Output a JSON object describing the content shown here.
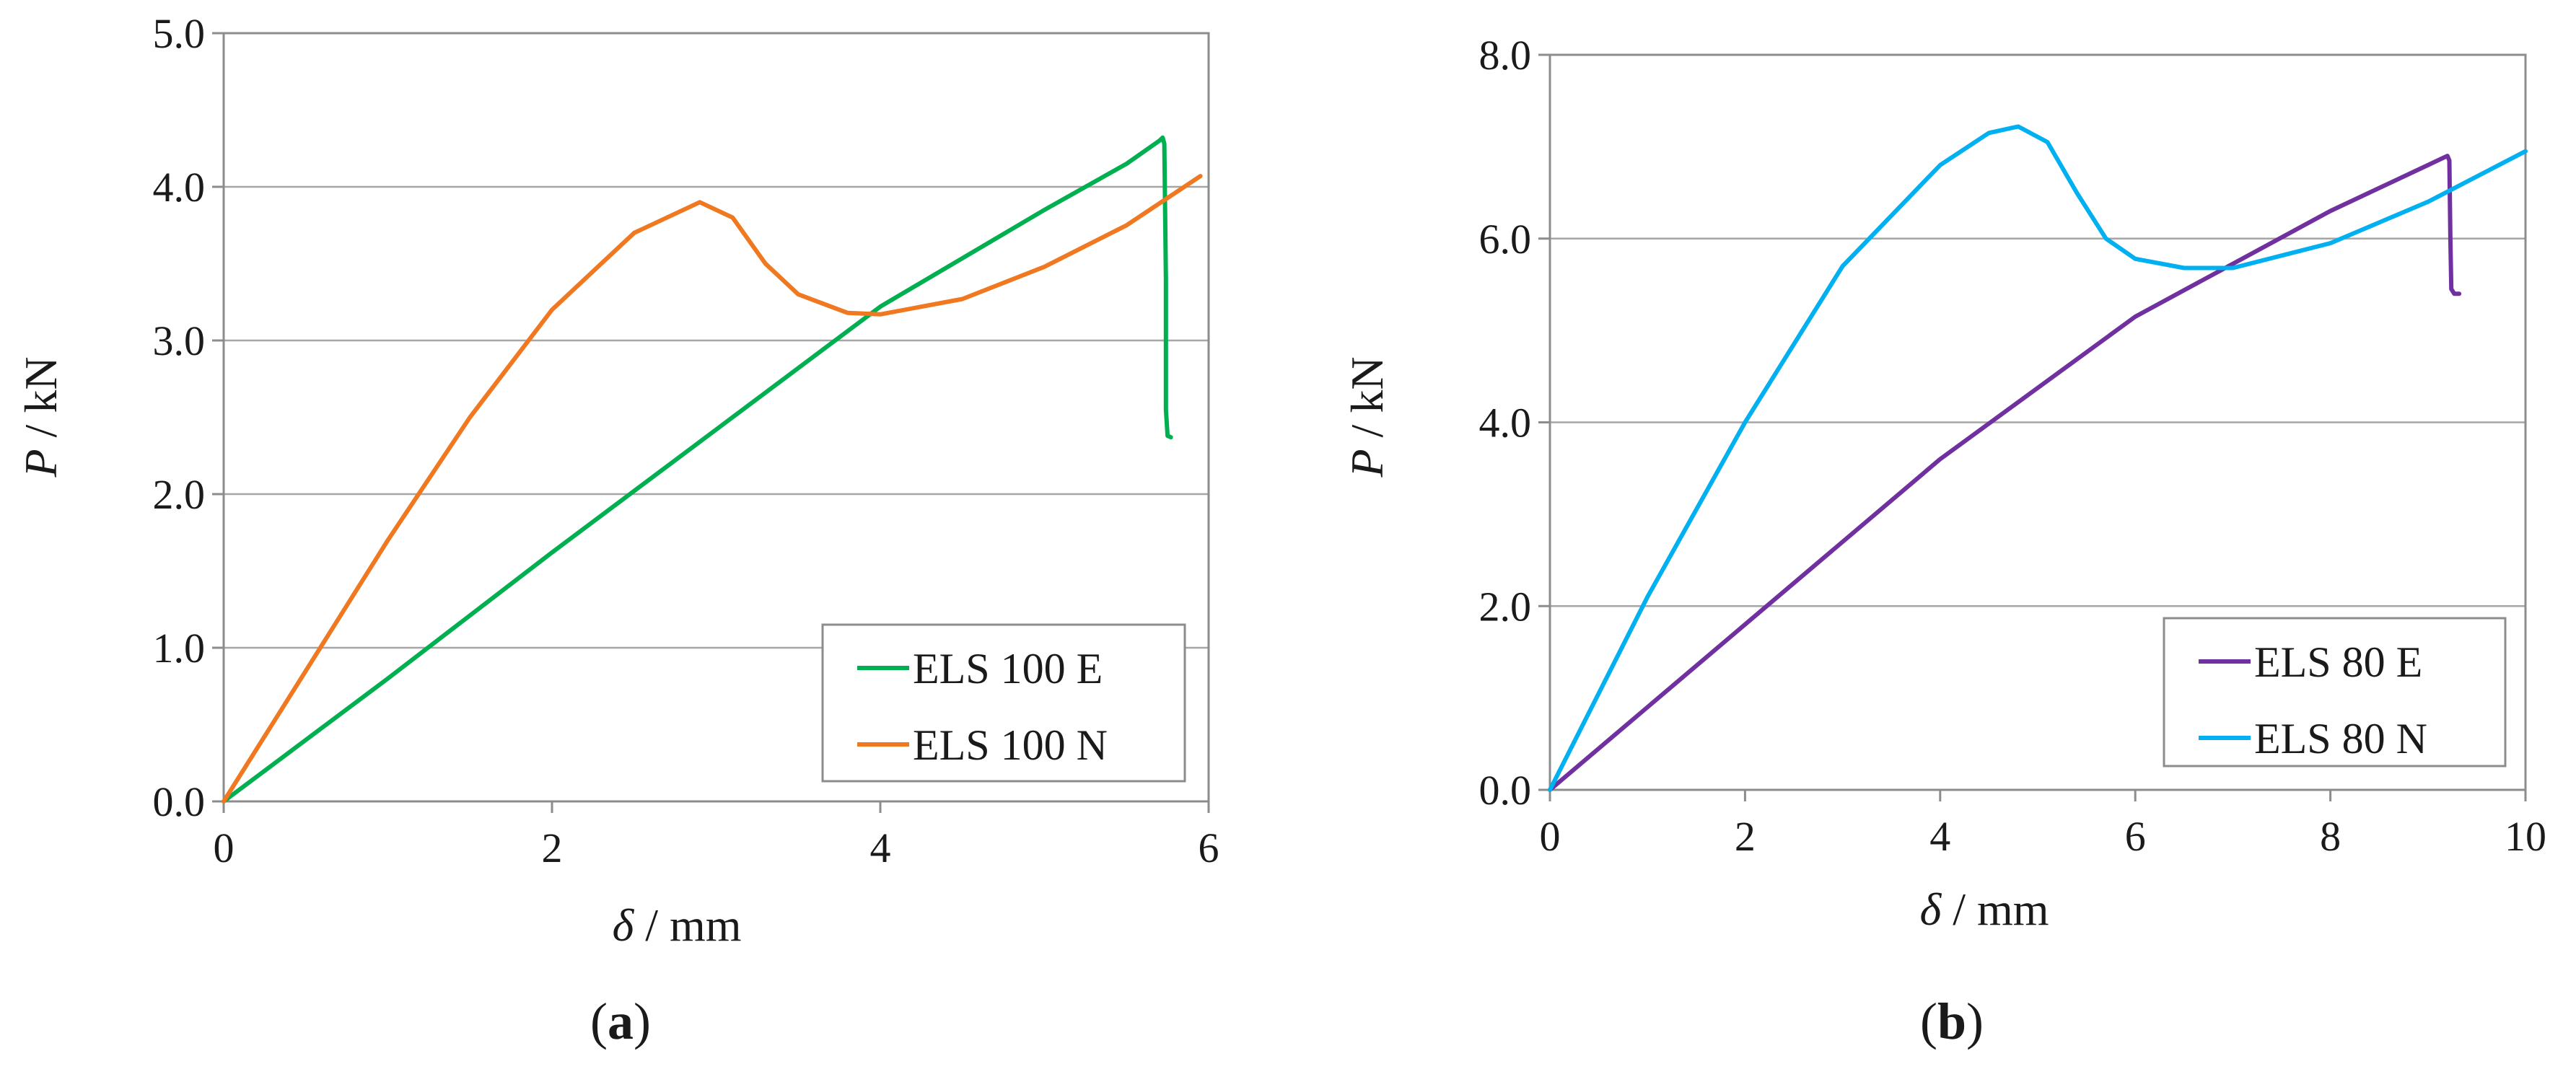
{
  "chart_data": [
    {
      "type": "line",
      "panel_label": "a",
      "xlabel_symbol": "δ",
      "xlabel_unit": " / mm",
      "ylabel_symbol": "P",
      "ylabel_unit": " / kN",
      "xlim": [
        0,
        6
      ],
      "ylim": [
        0,
        5
      ],
      "x_ticks": [
        0,
        2,
        4,
        6
      ],
      "x_tick_labels": [
        "0",
        "2",
        "4",
        "6"
      ],
      "y_ticks": [
        0,
        1,
        2,
        3,
        4,
        5
      ],
      "y_tick_labels": [
        "0.0",
        "1.0",
        "2.0",
        "3.0",
        "4.0",
        "5.0"
      ],
      "grid": "horizontal",
      "legend_position": "bottom-right",
      "series": [
        {
          "name": "ELS 100 E",
          "color": "#00b050",
          "points": [
            [
              0,
              0
            ],
            [
              1,
              0.8
            ],
            [
              2,
              1.62
            ],
            [
              3,
              2.42
            ],
            [
              4,
              3.22
            ],
            [
              5,
              3.85
            ],
            [
              5.5,
              4.15
            ],
            [
              5.7,
              4.3
            ],
            [
              5.72,
              4.32
            ],
            [
              5.73,
              4.28
            ],
            [
              5.74,
              3.4
            ],
            [
              5.74,
              2.55
            ],
            [
              5.75,
              2.38
            ],
            [
              5.77,
              2.37
            ]
          ]
        },
        {
          "name": "ELS 100 N",
          "color": "#f07820",
          "points": [
            [
              0,
              0
            ],
            [
              0.5,
              0.85
            ],
            [
              1,
              1.7
            ],
            [
              1.5,
              2.5
            ],
            [
              2,
              3.2
            ],
            [
              2.5,
              3.7
            ],
            [
              2.9,
              3.9
            ],
            [
              3.1,
              3.8
            ],
            [
              3.3,
              3.5
            ],
            [
              3.5,
              3.3
            ],
            [
              3.8,
              3.18
            ],
            [
              4,
              3.17
            ],
            [
              4.5,
              3.27
            ],
            [
              5,
              3.48
            ],
            [
              5.5,
              3.75
            ],
            [
              5.95,
              4.07
            ]
          ]
        }
      ]
    },
    {
      "type": "line",
      "panel_label": "b",
      "xlabel_symbol": "δ",
      "xlabel_unit": " / mm",
      "ylabel_symbol": "P",
      "ylabel_unit": " / kN",
      "xlim": [
        0,
        10
      ],
      "ylim": [
        0,
        8
      ],
      "x_ticks": [
        0,
        2,
        4,
        6,
        8,
        10
      ],
      "x_tick_labels": [
        "0",
        "2",
        "4",
        "6",
        "8",
        "10"
      ],
      "y_ticks": [
        0,
        2,
        4,
        6,
        8
      ],
      "y_tick_labels": [
        "0.0",
        "2.0",
        "4.0",
        "6.0",
        "8.0"
      ],
      "grid": "horizontal",
      "legend_position": "bottom-right",
      "series": [
        {
          "name": "ELS 80 E",
          "color": "#7030a0",
          "points": [
            [
              0,
              0
            ],
            [
              2,
              1.8
            ],
            [
              4,
              3.6
            ],
            [
              6,
              5.15
            ],
            [
              8,
              6.3
            ],
            [
              9,
              6.8
            ],
            [
              9.2,
              6.9
            ],
            [
              9.22,
              6.85
            ],
            [
              9.23,
              6.0
            ],
            [
              9.24,
              5.45
            ],
            [
              9.27,
              5.4
            ],
            [
              9.32,
              5.4
            ]
          ]
        },
        {
          "name": "ELS 80 N",
          "color": "#00b0f0",
          "points": [
            [
              0,
              0
            ],
            [
              1,
              2.1
            ],
            [
              2,
              4
            ],
            [
              3,
              5.7
            ],
            [
              4,
              6.8
            ],
            [
              4.5,
              7.15
            ],
            [
              4.8,
              7.22
            ],
            [
              5.1,
              7.05
            ],
            [
              5.4,
              6.5
            ],
            [
              5.7,
              6
            ],
            [
              6,
              5.78
            ],
            [
              6.5,
              5.68
            ],
            [
              7,
              5.68
            ],
            [
              8,
              5.95
            ],
            [
              9,
              6.4
            ],
            [
              10,
              6.95
            ]
          ]
        }
      ]
    }
  ]
}
